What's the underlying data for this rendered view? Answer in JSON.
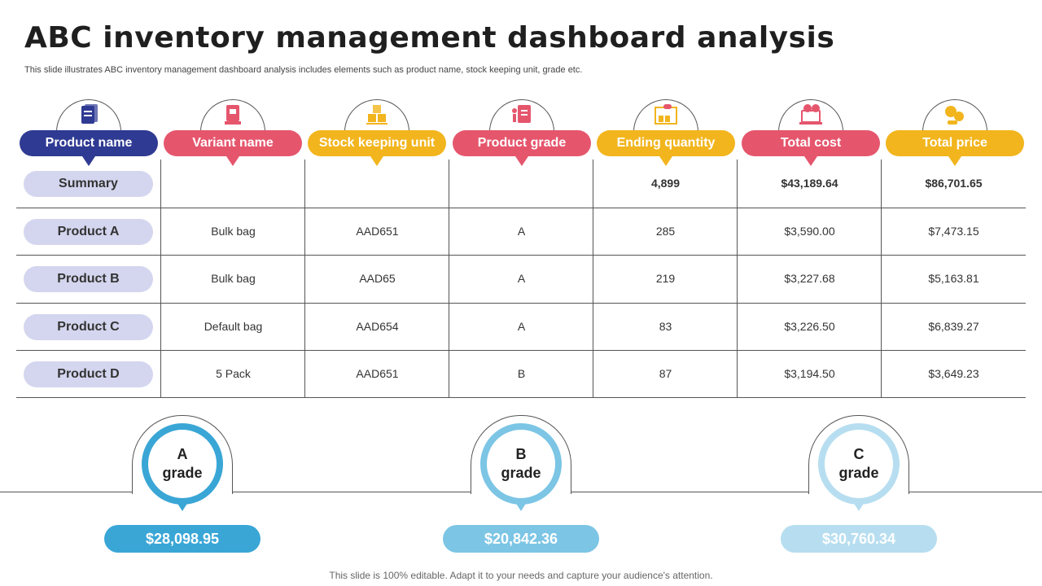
{
  "title": "ABC inventory management dashboard analysis",
  "subtitle": "This slide illustrates ABC inventory management dashboard analysis includes elements such as product name, stock keeping unit, grade etc.",
  "headers": [
    {
      "label": "Product name",
      "color": "#2f3a93",
      "icon": "document-stack-icon"
    },
    {
      "label": "Variant name",
      "color": "#e5566d",
      "icon": "package-icon"
    },
    {
      "label": "Stock keeping unit",
      "color": "#f2b51e",
      "icon": "warehouse-boxes-icon"
    },
    {
      "label": "Product grade",
      "color": "#e5566d",
      "icon": "clipboard-chart-icon"
    },
    {
      "label": "Ending quantity",
      "color": "#f2b51e",
      "icon": "inventory-shelf-icon"
    },
    {
      "label": "Total cost",
      "color": "#e5566d",
      "icon": "laptop-cost-icon"
    },
    {
      "label": "Total price",
      "color": "#f2b51e",
      "icon": "coins-icon"
    }
  ],
  "rows": [
    {
      "label": "Summary",
      "cells": [
        "",
        "",
        "",
        "4,899",
        "$43,189.64",
        "$86,701.65"
      ]
    },
    {
      "label": "Product A",
      "cells": [
        "Bulk bag",
        "AAD651",
        "A",
        "285",
        "$3,590.00",
        "$7,473.15"
      ]
    },
    {
      "label": "Product B",
      "cells": [
        "Bulk bag",
        "AAD65",
        "A",
        "219",
        "$3,227.68",
        "$5,163.81"
      ]
    },
    {
      "label": "Product C",
      "cells": [
        "Default bag",
        "AAD654",
        "A",
        "83",
        "$3,226.50",
        "$6,839.27"
      ]
    },
    {
      "label": "Product D",
      "cells": [
        "5 Pack",
        "AAD651",
        "B",
        "87",
        "$3,194.50",
        "$3,649.23"
      ]
    }
  ],
  "grades": [
    {
      "letter": "A",
      "word": "grade",
      "amount": "$28,098.95",
      "color": "#3aa6d6"
    },
    {
      "letter": "B",
      "word": "grade",
      "amount": "$20,842.36",
      "color": "#7cc5e5"
    },
    {
      "letter": "C",
      "word": "grade",
      "amount": "$30,760.34",
      "color": "#b7def0"
    }
  ],
  "footer": "This slide is 100% editable. Adapt it to your needs and capture your audience's attention."
}
